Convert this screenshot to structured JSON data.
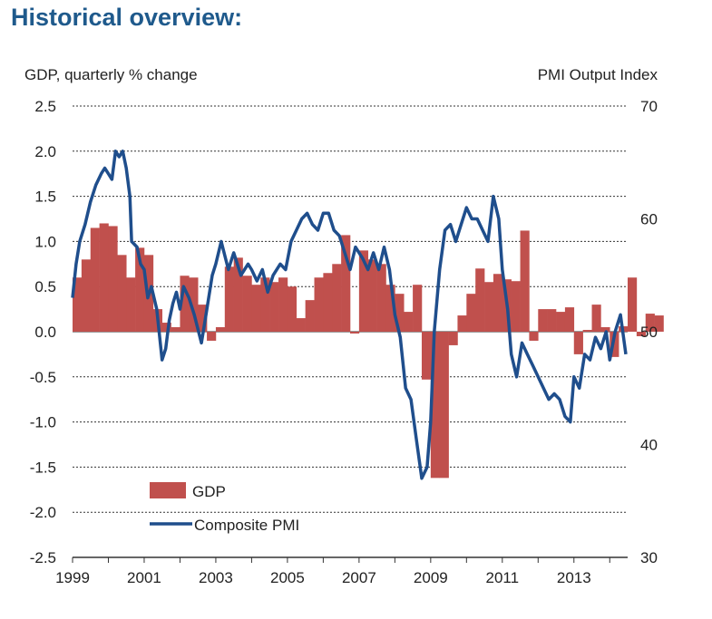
{
  "title": "Historical overview:",
  "chart_data": {
    "type": "bar+line",
    "left_axis_label": "GDP, quarterly % change",
    "right_axis_label": "PMI Output  Index",
    "left_ylim": [
      -2.5,
      2.5
    ],
    "left_ticks": [
      "2.5",
      "2.0",
      "1.5",
      "1.0",
      "0.5",
      "0.0",
      "-0.5",
      "-1.0",
      "-1.5",
      "-2.0",
      "-2.5"
    ],
    "right_ylim": [
      30,
      70
    ],
    "right_ticks": [
      "70",
      "60",
      "50",
      "40",
      "30"
    ],
    "x_ticks": [
      "1999",
      "2001",
      "2003",
      "2005",
      "2007",
      "2009",
      "2011",
      "2013"
    ],
    "xlim": [
      1999,
      2014.5
    ],
    "grid": true,
    "legend_placement": "bottom-left",
    "colors": {
      "gdp": "#c0504d",
      "pmi": "#1f4e8c"
    },
    "gdp": {
      "name": "GDP",
      "start_year": 1999,
      "values": [
        0.6,
        0.8,
        1.15,
        1.2,
        1.17,
        0.85,
        0.6,
        0.93,
        0.85,
        0.25,
        0.1,
        0.05,
        0.62,
        0.6,
        0.3,
        -0.1,
        0.05,
        0.72,
        0.82,
        0.62,
        0.52,
        0.6,
        0.55,
        0.6,
        0.5,
        0.15,
        0.35,
        0.6,
        0.65,
        0.75,
        1.07,
        -0.02,
        0.9,
        0.8,
        0.75,
        0.52,
        0.42,
        0.22,
        0.52,
        -0.53,
        -1.62,
        -1.62,
        -0.15,
        0.18,
        0.42,
        0.7,
        0.55,
        0.64,
        0.58,
        0.56,
        1.12,
        -0.1,
        0.25,
        0.25,
        0.22,
        0.27,
        -0.25,
        0.02,
        0.3,
        0.05,
        -0.28,
        0.06,
        0.6,
        -0.05,
        0.2,
        0.18
      ]
    },
    "pmi": {
      "name": "Composite PMI",
      "dates": [
        1999.0,
        1999.1,
        1999.2,
        1999.35,
        1999.5,
        1999.65,
        1999.8,
        1999.9,
        2000.0,
        2000.1,
        2000.2,
        2000.3,
        2000.4,
        2000.5,
        2000.6,
        2000.65,
        2000.8,
        2000.9,
        2001.0,
        2001.1,
        2001.2,
        2001.35,
        2001.5,
        2001.6,
        2001.7,
        2001.8,
        2001.9,
        2002.0,
        2002.1,
        2002.25,
        2002.4,
        2002.6,
        2002.75,
        2002.9,
        2003.0,
        2003.15,
        2003.35,
        2003.5,
        2003.7,
        2003.9,
        2004.0,
        2004.15,
        2004.3,
        2004.45,
        2004.6,
        2004.8,
        2004.95,
        2005.1,
        2005.25,
        2005.4,
        2005.55,
        2005.7,
        2005.85,
        2006.0,
        2006.15,
        2006.3,
        2006.45,
        2006.6,
        2006.75,
        2006.9,
        2007.0,
        2007.1,
        2007.25,
        2007.4,
        2007.55,
        2007.7,
        2007.85,
        2008.0,
        2008.15,
        2008.3,
        2008.45,
        2008.6,
        2008.75,
        2008.9,
        2009.0,
        2009.1,
        2009.25,
        2009.4,
        2009.55,
        2009.7,
        2009.85,
        2010.0,
        2010.15,
        2010.3,
        2010.45,
        2010.6,
        2010.75,
        2010.9,
        2011.0,
        2011.15,
        2011.25,
        2011.4,
        2011.55,
        2011.7,
        2011.85,
        2012.0,
        2012.15,
        2012.3,
        2012.45,
        2012.6,
        2012.75,
        2012.9,
        2013.0,
        2013.15,
        2013.3,
        2013.45,
        2013.6,
        2013.75,
        2013.9,
        2014.0,
        2014.15,
        2014.3,
        2014.45
      ],
      "values": [
        53,
        56,
        58,
        59.5,
        61.5,
        63,
        64,
        64.5,
        64,
        63.5,
        66,
        65.5,
        66,
        64.5,
        62,
        58,
        57.5,
        56,
        55.5,
        53,
        54,
        52,
        47.5,
        48.5,
        51,
        52.5,
        53.5,
        52,
        54,
        53,
        51.5,
        49,
        52,
        55,
        56,
        58,
        55.5,
        57,
        55,
        56,
        55.5,
        54.5,
        55.5,
        53.5,
        55,
        56,
        55.5,
        58,
        59,
        60,
        60.5,
        59.5,
        59,
        60.5,
        60.5,
        59,
        58.5,
        57,
        55.5,
        57.5,
        57,
        56.5,
        55.5,
        57,
        55.5,
        57.5,
        55.5,
        51.5,
        49.5,
        45,
        44,
        40.5,
        37,
        38,
        42,
        50,
        55.5,
        59,
        59.5,
        58,
        59.5,
        61,
        60,
        60,
        59,
        58,
        62,
        60,
        55.5,
        52,
        48,
        46,
        49,
        48,
        47,
        46,
        45,
        44,
        44.5,
        44,
        42.5,
        42,
        46,
        45,
        48,
        47.5,
        49.5,
        48.5,
        50,
        47.5,
        50,
        51.5,
        48
      ]
    }
  },
  "legend": {
    "gdp_label": "GDP",
    "pmi_label": "Composite PMI"
  }
}
